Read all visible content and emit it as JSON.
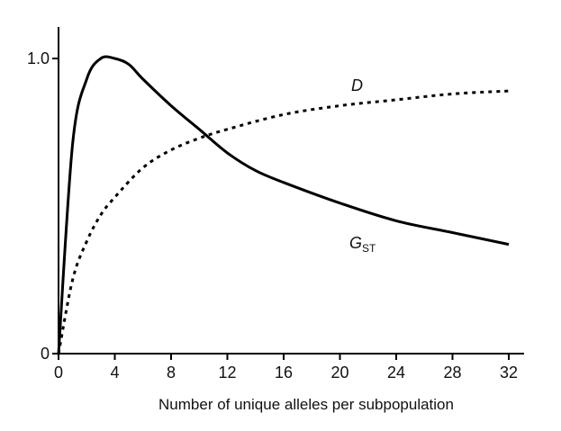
{
  "chart_data": {
    "type": "line",
    "title": "",
    "xlabel": "Number of unique alleles per subpopulation",
    "ylabel": "",
    "xlim": [
      0,
      32
    ],
    "ylim": [
      0,
      1.0
    ],
    "x_ticks": [
      0,
      4,
      8,
      12,
      16,
      20,
      24,
      28,
      32
    ],
    "x_tick_labels": [
      "0",
      "4",
      "8",
      "12",
      "16",
      "20",
      "24",
      "28",
      "32"
    ],
    "y_ticks": [
      0,
      1.0
    ],
    "y_tick_labels": [
      "0",
      "1.0"
    ],
    "grid": false,
    "legend": "none",
    "series": [
      {
        "name": "GST",
        "label_main": "G",
        "label_sub": "ST",
        "style": "solid",
        "color": "#000000",
        "x": [
          0,
          1,
          2,
          3,
          4,
          5,
          6,
          8,
          10,
          12,
          14,
          16,
          20,
          24,
          28,
          32
        ],
        "y": [
          0,
          0.71,
          0.93,
          1.0,
          1.0,
          0.98,
          0.93,
          0.84,
          0.76,
          0.68,
          0.62,
          0.58,
          0.51,
          0.45,
          0.41,
          0.37
        ]
      },
      {
        "name": "D",
        "label_main": "D",
        "label_sub": "",
        "style": "dotted",
        "color": "#000000",
        "x": [
          0,
          1,
          2,
          3,
          4,
          6,
          8,
          10,
          12,
          16,
          20,
          24,
          28,
          32
        ],
        "y": [
          0,
          0.25,
          0.38,
          0.47,
          0.53,
          0.63,
          0.69,
          0.73,
          0.76,
          0.81,
          0.84,
          0.86,
          0.88,
          0.89
        ]
      }
    ]
  }
}
